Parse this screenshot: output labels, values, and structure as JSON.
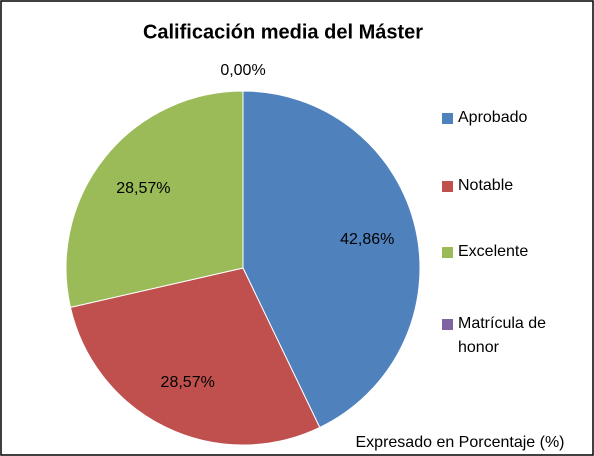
{
  "chart_data": {
    "type": "pie",
    "title": "Calificación media del Máster",
    "annotation": "Expresado en Porcentaje (%)",
    "categories": [
      "Aprobado",
      "Notable",
      "Excelente",
      "Matrícula de honor"
    ],
    "values": [
      42.86,
      28.57,
      28.57,
      0
    ],
    "value_labels": [
      "42,86%",
      "28,57%",
      "28,57%",
      "0,00%"
    ],
    "colors": [
      "#4f81bd",
      "#c0504d",
      "#9bbb59",
      "#8064a2"
    ],
    "legend": "right"
  }
}
